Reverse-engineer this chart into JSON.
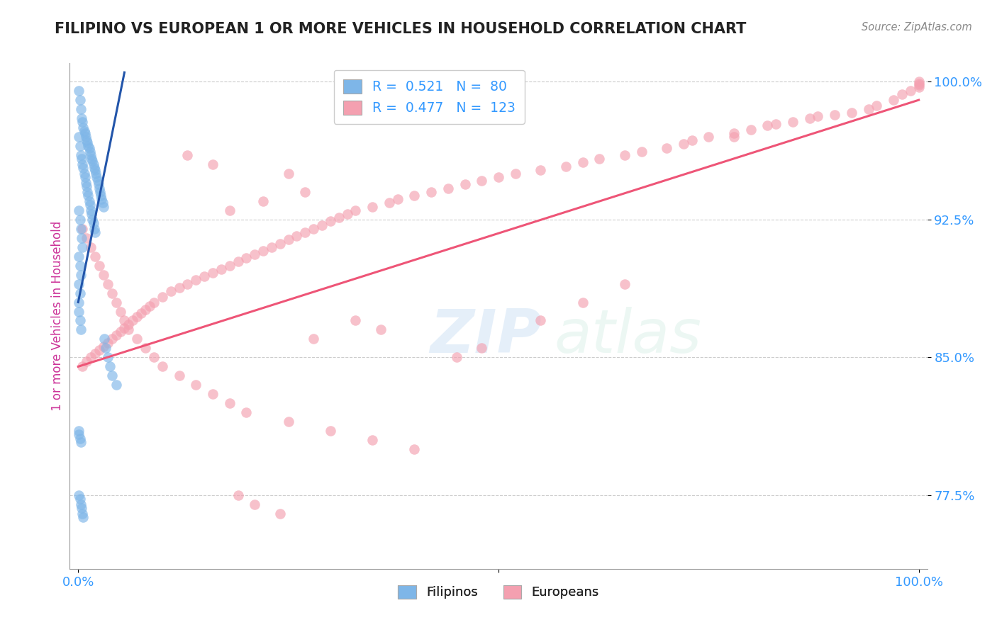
{
  "title": "FILIPINO VS EUROPEAN 1 OR MORE VEHICLES IN HOUSEHOLD CORRELATION CHART",
  "source_text": "Source: ZipAtlas.com",
  "ylabel": "1 or more Vehicles in Household",
  "watermark_zip": "ZIP",
  "watermark_atlas": "atlas",
  "xlim": [
    -0.01,
    1.01
  ],
  "ylim": [
    0.735,
    1.01
  ],
  "yticks": [
    0.775,
    0.85,
    0.925,
    1.0
  ],
  "ytick_labels": [
    "77.5%",
    "85.0%",
    "92.5%",
    "100.0%"
  ],
  "xticks": [
    0.0,
    0.5,
    1.0
  ],
  "xtick_labels": [
    "0.0%",
    "",
    "100.0%"
  ],
  "filipino_R": 0.521,
  "filipino_N": 80,
  "european_R": 0.477,
  "european_N": 123,
  "filipino_color": "#7EB6E8",
  "european_color": "#F4A0B0",
  "filipino_trend_color": "#2255AA",
  "european_trend_color": "#EE5577",
  "background_color": "#FFFFFF",
  "grid_color": "#CCCCCC",
  "title_color": "#222222",
  "axis_label_color": "#CC3399",
  "tick_label_color": "#3399FF",
  "legend_text_color": "#3399FF",
  "filipino_x": [
    0.001,
    0.002,
    0.003,
    0.004,
    0.005,
    0.006,
    0.007,
    0.008,
    0.009,
    0.01,
    0.011,
    0.012,
    0.013,
    0.014,
    0.015,
    0.016,
    0.017,
    0.018,
    0.019,
    0.02,
    0.021,
    0.022,
    0.023,
    0.024,
    0.025,
    0.026,
    0.027,
    0.028,
    0.029,
    0.03,
    0.001,
    0.002,
    0.003,
    0.004,
    0.005,
    0.006,
    0.007,
    0.008,
    0.009,
    0.01,
    0.011,
    0.012,
    0.013,
    0.014,
    0.015,
    0.016,
    0.017,
    0.018,
    0.019,
    0.02,
    0.001,
    0.002,
    0.003,
    0.004,
    0.005,
    0.001,
    0.002,
    0.003,
    0.001,
    0.002,
    0.001,
    0.001,
    0.002,
    0.003,
    0.031,
    0.033,
    0.035,
    0.038,
    0.04,
    0.045,
    0.001,
    0.001,
    0.002,
    0.003,
    0.001,
    0.002,
    0.003,
    0.004,
    0.005,
    0.006
  ],
  "filipino_y": [
    0.995,
    0.99,
    0.985,
    0.98,
    0.978,
    0.975,
    0.973,
    0.972,
    0.97,
    0.968,
    0.967,
    0.965,
    0.964,
    0.962,
    0.96,
    0.958,
    0.957,
    0.955,
    0.953,
    0.952,
    0.95,
    0.948,
    0.946,
    0.944,
    0.942,
    0.94,
    0.938,
    0.936,
    0.934,
    0.932,
    0.97,
    0.965,
    0.96,
    0.958,
    0.955,
    0.953,
    0.95,
    0.948,
    0.945,
    0.943,
    0.94,
    0.938,
    0.935,
    0.933,
    0.93,
    0.928,
    0.925,
    0.923,
    0.92,
    0.918,
    0.93,
    0.925,
    0.92,
    0.915,
    0.91,
    0.905,
    0.9,
    0.895,
    0.89,
    0.885,
    0.88,
    0.875,
    0.87,
    0.865,
    0.86,
    0.855,
    0.85,
    0.845,
    0.84,
    0.835,
    0.81,
    0.808,
    0.806,
    0.804,
    0.775,
    0.773,
    0.77,
    0.768,
    0.765,
    0.763
  ],
  "european_x": [
    0.005,
    0.01,
    0.015,
    0.02,
    0.025,
    0.03,
    0.035,
    0.04,
    0.045,
    0.05,
    0.055,
    0.06,
    0.065,
    0.07,
    0.075,
    0.08,
    0.085,
    0.09,
    0.1,
    0.11,
    0.12,
    0.13,
    0.14,
    0.15,
    0.16,
    0.17,
    0.18,
    0.19,
    0.2,
    0.21,
    0.22,
    0.23,
    0.24,
    0.25,
    0.26,
    0.27,
    0.28,
    0.29,
    0.3,
    0.31,
    0.32,
    0.33,
    0.35,
    0.37,
    0.38,
    0.4,
    0.42,
    0.44,
    0.46,
    0.48,
    0.5,
    0.52,
    0.55,
    0.58,
    0.6,
    0.62,
    0.65,
    0.67,
    0.7,
    0.72,
    0.73,
    0.75,
    0.78,
    0.8,
    0.82,
    0.83,
    0.85,
    0.87,
    0.88,
    0.9,
    0.92,
    0.94,
    0.95,
    0.97,
    0.98,
    0.99,
    1.0,
    1.0,
    1.0,
    1.0,
    0.005,
    0.01,
    0.015,
    0.02,
    0.025,
    0.03,
    0.035,
    0.04,
    0.045,
    0.05,
    0.055,
    0.06,
    0.07,
    0.08,
    0.09,
    0.1,
    0.12,
    0.14,
    0.16,
    0.18,
    0.2,
    0.25,
    0.3,
    0.35,
    0.4,
    0.33,
    0.36,
    0.28,
    0.55,
    0.6,
    0.65,
    0.25,
    0.78,
    0.27,
    0.18,
    0.22,
    0.45,
    0.48,
    0.13,
    0.16,
    0.19,
    0.21,
    0.24
  ],
  "european_y": [
    0.845,
    0.848,
    0.85,
    0.852,
    0.854,
    0.856,
    0.858,
    0.86,
    0.862,
    0.864,
    0.866,
    0.868,
    0.87,
    0.872,
    0.874,
    0.876,
    0.878,
    0.88,
    0.883,
    0.886,
    0.888,
    0.89,
    0.892,
    0.894,
    0.896,
    0.898,
    0.9,
    0.902,
    0.904,
    0.906,
    0.908,
    0.91,
    0.912,
    0.914,
    0.916,
    0.918,
    0.92,
    0.922,
    0.924,
    0.926,
    0.928,
    0.93,
    0.932,
    0.934,
    0.936,
    0.938,
    0.94,
    0.942,
    0.944,
    0.946,
    0.948,
    0.95,
    0.952,
    0.954,
    0.956,
    0.958,
    0.96,
    0.962,
    0.964,
    0.966,
    0.968,
    0.97,
    0.972,
    0.974,
    0.976,
    0.977,
    0.978,
    0.98,
    0.981,
    0.982,
    0.983,
    0.985,
    0.987,
    0.99,
    0.993,
    0.995,
    0.997,
    0.998,
    0.999,
    1.0,
    0.92,
    0.915,
    0.91,
    0.905,
    0.9,
    0.895,
    0.89,
    0.885,
    0.88,
    0.875,
    0.87,
    0.865,
    0.86,
    0.855,
    0.85,
    0.845,
    0.84,
    0.835,
    0.83,
    0.825,
    0.82,
    0.815,
    0.81,
    0.805,
    0.8,
    0.87,
    0.865,
    0.86,
    0.87,
    0.88,
    0.89,
    0.95,
    0.97,
    0.94,
    0.93,
    0.935,
    0.85,
    0.855,
    0.96,
    0.955,
    0.775,
    0.77,
    0.765
  ],
  "fil_trend_x": [
    0.0,
    0.055
  ],
  "fil_trend_y_start": 0.88,
  "fil_trend_y_end": 1.005,
  "eur_trend_x": [
    0.0,
    1.0
  ],
  "eur_trend_y_start": 0.845,
  "eur_trend_y_end": 0.99
}
